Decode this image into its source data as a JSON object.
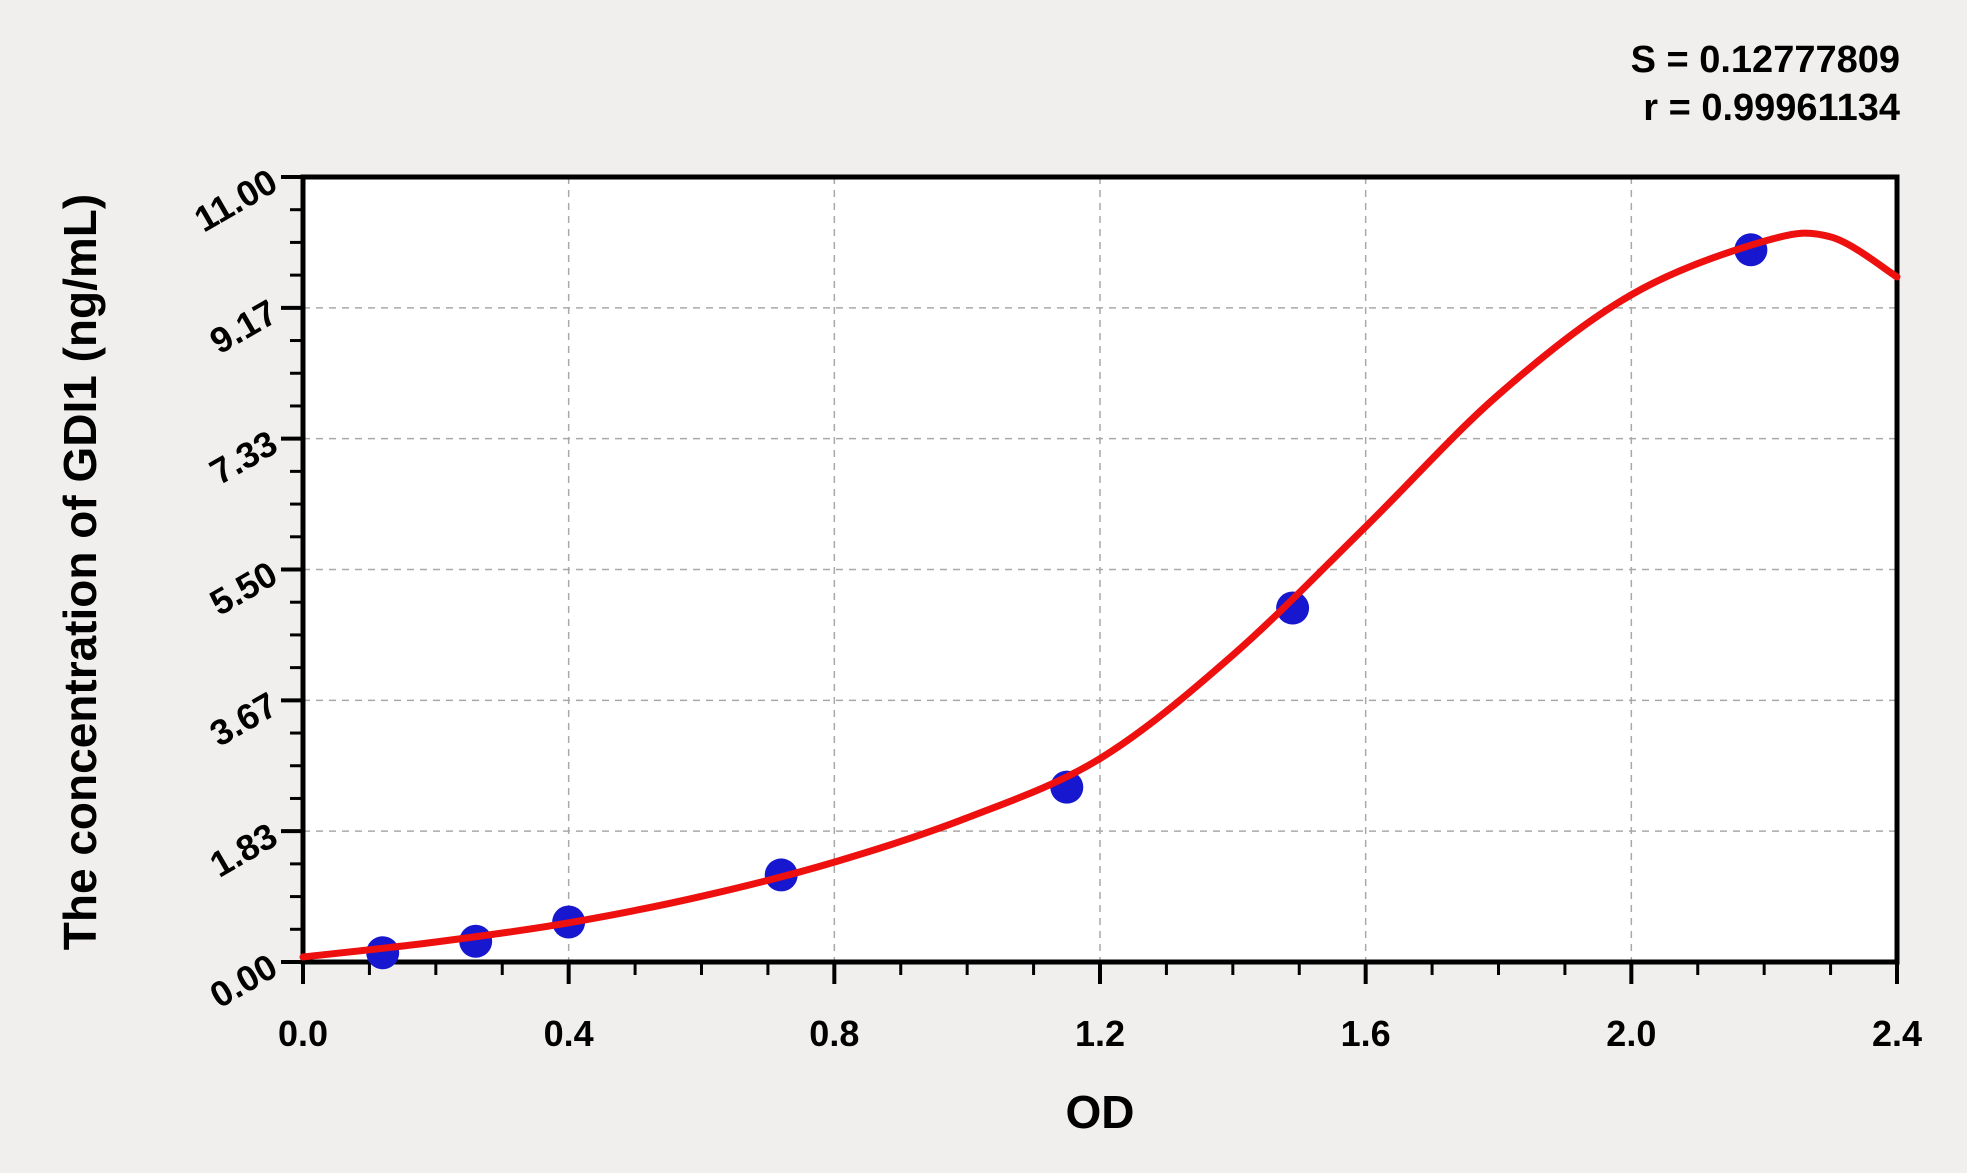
{
  "page": {
    "background_color": "#f0efed"
  },
  "chart_data": {
    "type": "scatter",
    "title": "",
    "xlabel": "OD",
    "ylabel": "The concentration of GDI1 (ng/mL)",
    "xlim": [
      0,
      2.4
    ],
    "ylim": [
      0,
      11
    ],
    "x_tick_labels": [
      "0.0",
      "0.4",
      "0.8",
      "1.2",
      "1.6",
      "2.0",
      "2.4"
    ],
    "y_tick_labels": [
      "0.00",
      "1.83",
      "3.67",
      "5.50",
      "7.33",
      "9.17",
      "11.00"
    ],
    "minor_ticks_per_major": 4,
    "grid": "dashed lines at every major tick",
    "legend_position": "none",
    "stats": {
      "s_line": "S = 0.12777809",
      "r_line": "r = 0.99961134"
    },
    "points": [
      {
        "od": 0.12,
        "conc": 0.13
      },
      {
        "od": 0.26,
        "conc": 0.29
      },
      {
        "od": 0.4,
        "conc": 0.56
      },
      {
        "od": 0.72,
        "conc": 1.22
      },
      {
        "od": 1.15,
        "conc": 2.45
      },
      {
        "od": 1.49,
        "conc": 4.96
      },
      {
        "od": 2.18,
        "conc": 9.98
      }
    ],
    "fit_curve": [
      [
        0.0,
        0.07
      ],
      [
        0.2,
        0.28
      ],
      [
        0.4,
        0.55
      ],
      [
        0.6,
        0.92
      ],
      [
        0.8,
        1.4
      ],
      [
        1.0,
        2.02
      ],
      [
        1.2,
        2.85
      ],
      [
        1.4,
        4.3
      ],
      [
        1.6,
        6.1
      ],
      [
        1.8,
        7.95
      ],
      [
        2.0,
        9.35
      ],
      [
        2.2,
        10.1
      ],
      [
        2.3,
        10.16
      ],
      [
        2.4,
        9.6
      ]
    ],
    "colors": {
      "curve": "#ee0f0f",
      "points": "#1717cf",
      "grid": "#a9a9a9",
      "axis": "#000000",
      "plot_bg": "#ffffff"
    }
  }
}
